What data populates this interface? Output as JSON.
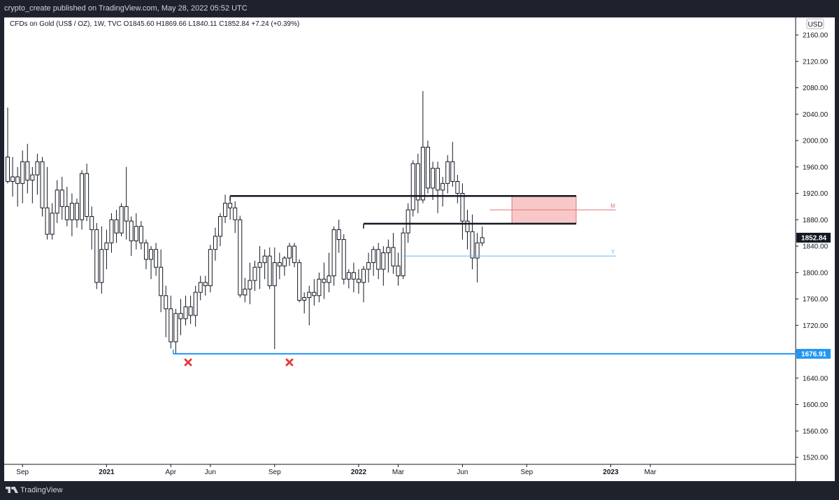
{
  "header": {
    "published": "crypto_create published on TradingView.com, May 28, 2022 05:52 UTC"
  },
  "legend": {
    "text": "CFDs on Gold (US$ / OZ), 1W, TVC  O1845.60  H1869.66  L1840.11  C1852.84  +7.24 (+0.39%)"
  },
  "footer": {
    "brand": "TradingView"
  },
  "colors": {
    "up": "#ffffff",
    "down": "#ffffff",
    "wick": "#131722",
    "support": "#2196f3",
    "zone": "#f8c8c8",
    "midline_m": "#e57373",
    "midline_y": "#64b5f6"
  },
  "chart_data": {
    "type": "candlestick",
    "currency_label": "USD",
    "y_ticks": [
      "2160.00",
      "2120.00",
      "2080.00",
      "2040.00",
      "2000.00",
      "1960.00",
      "1920.00",
      "1880.00",
      "1840.00",
      "1800.00",
      "1760.00",
      "1720.00",
      "1680.00",
      "1640.00",
      "1600.00",
      "1560.00",
      "1520.00"
    ],
    "y_tick_values": [
      2160,
      2120,
      2080,
      2040,
      2000,
      1960,
      1920,
      1880,
      1840,
      1800,
      1760,
      1720,
      1680,
      1640,
      1600,
      1560,
      1520
    ],
    "ylim": [
      1504,
      2192
    ],
    "x_labels": [
      {
        "text": "Sep",
        "week": 3,
        "bold": false
      },
      {
        "text": "2021",
        "week": 20,
        "bold": true
      },
      {
        "text": "Apr",
        "week": 33,
        "bold": false
      },
      {
        "text": "Jun",
        "week": 41,
        "bold": false
      },
      {
        "text": "Sep",
        "week": 54,
        "bold": false
      },
      {
        "text": "2022",
        "week": 71,
        "bold": true
      },
      {
        "text": "Mar",
        "week": 79,
        "bold": false
      },
      {
        "text": "Jun",
        "week": 92,
        "bold": false
      },
      {
        "text": "Sep",
        "week": 105,
        "bold": false
      },
      {
        "text": "2023",
        "week": 122,
        "bold": true
      },
      {
        "text": "Mar",
        "week": 130,
        "bold": false
      }
    ],
    "price_labels": [
      {
        "text": "1852.84",
        "value": 1852.84,
        "style": "dark"
      },
      {
        "text": "1676.91",
        "value": 1676.91,
        "style": "blue"
      }
    ],
    "candles": [
      [
        1975,
        2050,
        1935,
        1938
      ],
      [
        1938,
        1975,
        1915,
        1945
      ],
      [
        1945,
        1960,
        1900,
        1935
      ],
      [
        1935,
        1985,
        1905,
        1968
      ],
      [
        1968,
        1995,
        1920,
        1940
      ],
      [
        1940,
        1960,
        1905,
        1948
      ],
      [
        1948,
        1980,
        1918,
        1968
      ],
      [
        1968,
        1975,
        1885,
        1898
      ],
      [
        1898,
        1960,
        1850,
        1858
      ],
      [
        1858,
        1905,
        1850,
        1890
      ],
      [
        1890,
        1940,
        1875,
        1925
      ],
      [
        1925,
        1945,
        1880,
        1900
      ],
      [
        1900,
        1930,
        1870,
        1880
      ],
      [
        1880,
        1920,
        1855,
        1905
      ],
      [
        1905,
        1912,
        1868,
        1880
      ],
      [
        1880,
        1955,
        1865,
        1950
      ],
      [
        1950,
        1965,
        1878,
        1885
      ],
      [
        1885,
        1900,
        1835,
        1865
      ],
      [
        1865,
        1875,
        1775,
        1785
      ],
      [
        1785,
        1870,
        1768,
        1835
      ],
      [
        1835,
        1865,
        1805,
        1845
      ],
      [
        1845,
        1890,
        1830,
        1880
      ],
      [
        1880,
        1895,
        1845,
        1860
      ],
      [
        1860,
        1905,
        1855,
        1900
      ],
      [
        1900,
        1960,
        1850,
        1878
      ],
      [
        1878,
        1885,
        1825,
        1848
      ],
      [
        1848,
        1890,
        1835,
        1870
      ],
      [
        1870,
        1878,
        1835,
        1845
      ],
      [
        1845,
        1850,
        1805,
        1820
      ],
      [
        1820,
        1840,
        1790,
        1835
      ],
      [
        1835,
        1845,
        1795,
        1808
      ],
      [
        1808,
        1835,
        1740,
        1765
      ],
      [
        1765,
        1780,
        1702,
        1745
      ],
      [
        1745,
        1765,
        1685,
        1695
      ],
      [
        1695,
        1745,
        1677,
        1738
      ],
      [
        1738,
        1760,
        1705,
        1730
      ],
      [
        1730,
        1765,
        1720,
        1748
      ],
      [
        1748,
        1765,
        1722,
        1735
      ],
      [
        1735,
        1780,
        1718,
        1770
      ],
      [
        1770,
        1795,
        1758,
        1785
      ],
      [
        1785,
        1795,
        1765,
        1780
      ],
      [
        1780,
        1842,
        1770,
        1835
      ],
      [
        1835,
        1868,
        1818,
        1855
      ],
      [
        1855,
        1890,
        1840,
        1885
      ],
      [
        1885,
        1918,
        1875,
        1905
      ],
      [
        1905,
        1915,
        1880,
        1898
      ],
      [
        1898,
        1908,
        1860,
        1880
      ],
      [
        1880,
        1886,
        1762,
        1766
      ],
      [
        1766,
        1792,
        1755,
        1775
      ],
      [
        1775,
        1815,
        1752,
        1788
      ],
      [
        1788,
        1818,
        1772,
        1808
      ],
      [
        1808,
        1840,
        1775,
        1815
      ],
      [
        1815,
        1835,
        1790,
        1825
      ],
      [
        1825,
        1838,
        1775,
        1780
      ],
      [
        1780,
        1838,
        1684,
        1815
      ],
      [
        1815,
        1830,
        1790,
        1810
      ],
      [
        1810,
        1825,
        1795,
        1822
      ],
      [
        1822,
        1845,
        1810,
        1840
      ],
      [
        1840,
        1845,
        1808,
        1815
      ],
      [
        1815,
        1820,
        1755,
        1758
      ],
      [
        1758,
        1770,
        1738,
        1762
      ],
      [
        1762,
        1780,
        1720,
        1770
      ],
      [
        1770,
        1790,
        1750,
        1765
      ],
      [
        1765,
        1800,
        1755,
        1790
      ],
      [
        1790,
        1815,
        1760,
        1785
      ],
      [
        1785,
        1830,
        1770,
        1795
      ],
      [
        1795,
        1870,
        1780,
        1865
      ],
      [
        1865,
        1880,
        1830,
        1850
      ],
      [
        1850,
        1858,
        1782,
        1790
      ],
      [
        1790,
        1805,
        1776,
        1800
      ],
      [
        1800,
        1815,
        1770,
        1790
      ],
      [
        1790,
        1805,
        1768,
        1785
      ],
      [
        1785,
        1810,
        1755,
        1805
      ],
      [
        1805,
        1830,
        1785,
        1815
      ],
      [
        1815,
        1840,
        1795,
        1835
      ],
      [
        1835,
        1845,
        1790,
        1805
      ],
      [
        1805,
        1840,
        1780,
        1830
      ],
      [
        1830,
        1850,
        1800,
        1838
      ],
      [
        1838,
        1860,
        1798,
        1810
      ],
      [
        1810,
        1830,
        1780,
        1795
      ],
      [
        1795,
        1868,
        1790,
        1860
      ],
      [
        1860,
        1905,
        1845,
        1895
      ],
      [
        1895,
        1970,
        1885,
        1965
      ],
      [
        1965,
        1980,
        1890,
        1910
      ],
      [
        1910,
        2075,
        1905,
        1990
      ],
      [
        1990,
        2000,
        1920,
        1928
      ],
      [
        1928,
        1968,
        1910,
        1958
      ],
      [
        1958,
        1968,
        1890,
        1925
      ],
      [
        1925,
        1945,
        1900,
        1935
      ],
      [
        1935,
        1978,
        1920,
        1968
      ],
      [
        1968,
        1998,
        1930,
        1938
      ],
      [
        1938,
        1948,
        1905,
        1920
      ],
      [
        1920,
        1935,
        1850,
        1878
      ],
      [
        1878,
        1895,
        1835,
        1862
      ],
      [
        1862,
        1888,
        1805,
        1822
      ],
      [
        1822,
        1860,
        1785,
        1845
      ],
      [
        1845,
        1869.66,
        1840.11,
        1852.84
      ]
    ],
    "annotations": {
      "support_line": {
        "value": 1676.91,
        "start_week": 33.5
      },
      "resistance_upper": {
        "value": 1916,
        "start_week": 45,
        "end_week": 115
      },
      "resistance_lower": {
        "value": 1874,
        "start_week": 72,
        "end_week": 115
      },
      "zone": {
        "top": 1916,
        "bottom": 1874,
        "start_week": 102,
        "end_week": 115
      },
      "mid_line_m": {
        "label": "M",
        "value": 1895,
        "start_week": 97.5,
        "end_week": 123
      },
      "mid_line_y": {
        "label": "Y",
        "value": 1825,
        "start_week": 80,
        "end_week": 123
      },
      "cross_marks": [
        {
          "week": 36.5,
          "value": 1664
        },
        {
          "week": 57,
          "value": 1664
        }
      ]
    }
  }
}
